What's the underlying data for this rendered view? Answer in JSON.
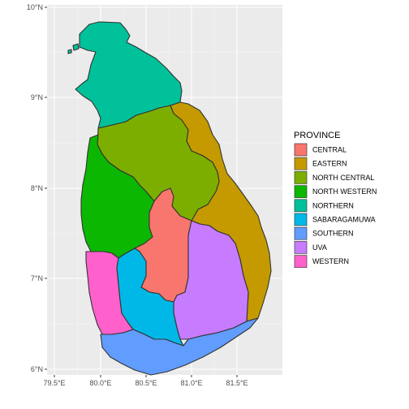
{
  "chart_data": {
    "type": "map",
    "x_ticks": [
      "79.5°E",
      "80.0°E",
      "80.5°E",
      "81.0°E",
      "81.5°E"
    ],
    "y_ticks": [
      "10°N",
      "9°N",
      "8°N",
      "7°N",
      "6°N"
    ],
    "legend": {
      "title": "PROVINCE",
      "placement": "right",
      "items": [
        {
          "label": "CENTRAL",
          "color": "#F8766D"
        },
        {
          "label": "EASTERN",
          "color": "#C49A00"
        },
        {
          "label": "NORTH CENTRAL",
          "color": "#7CAE00"
        },
        {
          "label": "NORTH WESTERN",
          "color": "#0CB702"
        },
        {
          "label": "NORTHERN",
          "color": "#00C19A"
        },
        {
          "label": "SABARAGAMUWA",
          "color": "#00B8E7"
        },
        {
          "label": "SOUTHERN",
          "color": "#619CFF"
        },
        {
          "label": "UVA",
          "color": "#C77CFF"
        },
        {
          "label": "WESTERN",
          "color": "#FF61CC"
        }
      ]
    },
    "panel_background": "#EBEBEB",
    "grid": true
  }
}
